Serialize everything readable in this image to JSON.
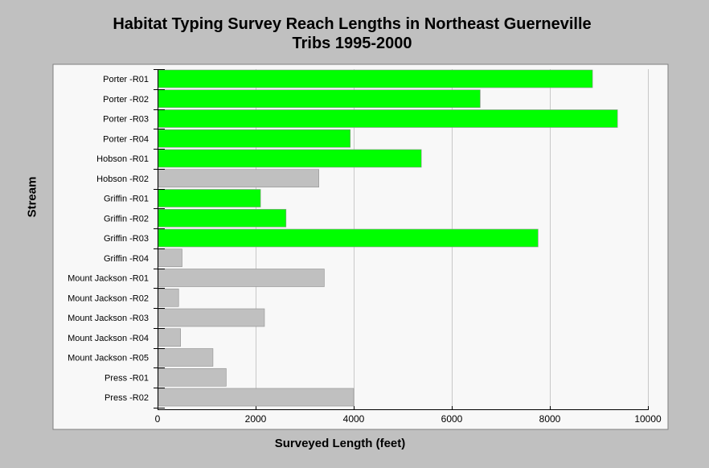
{
  "chart_data": {
    "type": "bar",
    "orientation": "horizontal",
    "title": [
      "Habitat Typing Survey Reach Lengths in Northeast Guerneville",
      "Tribs 1995-2000"
    ],
    "xlabel": "Surveyed Length (feet)",
    "ylabel": "Stream",
    "xlim": [
      0,
      10000
    ],
    "xticks": [
      0,
      2000,
      4000,
      6000,
      8000,
      10000
    ],
    "grid": true,
    "categories": [
      "Porter -R01",
      "Porter -R02",
      "Porter -R03",
      "Porter -R04",
      "Hobson -R01",
      "Hobson -R02",
      "Griffin -R01",
      "Griffin -R02",
      "Griffin -R03",
      "Griffin -R04",
      "Mount Jackson -R01",
      "Mount Jackson -R02",
      "Mount Jackson -R03",
      "Mount Jackson -R04",
      "Mount Jackson -R05",
      "Press -R01",
      "Press -R02"
    ],
    "values": [
      8870,
      6580,
      9380,
      3930,
      5380,
      3290,
      2100,
      2620,
      7760,
      500,
      3400,
      430,
      2180,
      470,
      1130,
      1400,
      4000
    ],
    "bar_colors": [
      "#00ff00",
      "#00ff00",
      "#00ff00",
      "#00ff00",
      "#00ff00",
      "#c0c0c0",
      "#00ff00",
      "#00ff00",
      "#00ff00",
      "#c0c0c0",
      "#c0c0c0",
      "#c0c0c0",
      "#c0c0c0",
      "#c0c0c0",
      "#c0c0c0",
      "#c0c0c0",
      "#c0c0c0"
    ]
  },
  "colors": {
    "background": "#c0c0c0",
    "plot_background": "#f8f8f8",
    "highlight_bar": "#00ff00",
    "default_bar": "#c0c0c0"
  }
}
